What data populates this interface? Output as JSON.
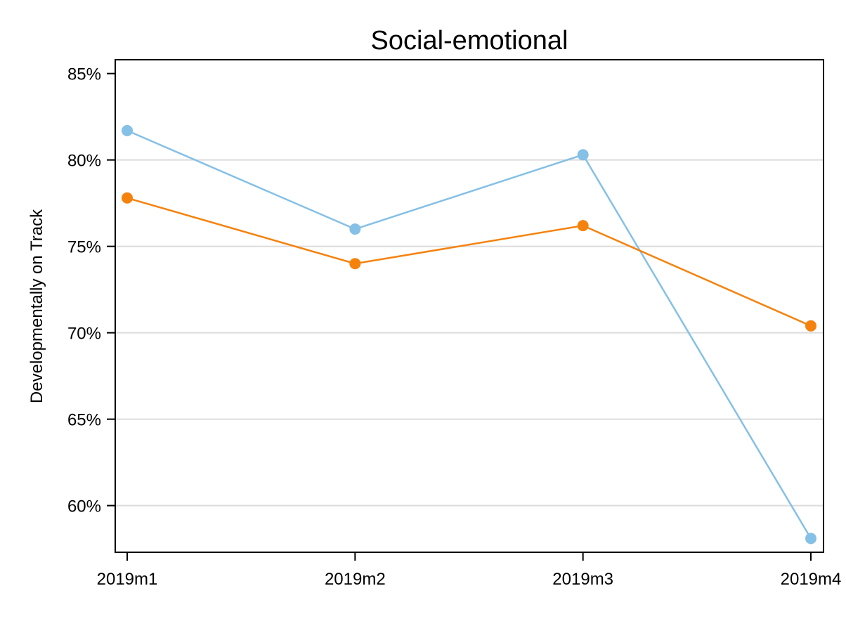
{
  "chart_data": {
    "type": "line",
    "title": "Social-emotional",
    "xlabel": "",
    "ylabel": "Developmentally on Track",
    "categories": [
      "2019m1",
      "2019m2",
      "2019m3",
      "2019m4"
    ],
    "y_ticks": [
      60,
      65,
      70,
      75,
      80,
      85
    ],
    "y_tick_labels": [
      "60%",
      "65%",
      "70%",
      "75%",
      "80%",
      "85%"
    ],
    "ylim": [
      57.3,
      85.8
    ],
    "grid": "horizontal",
    "legend": "none",
    "series": [
      {
        "color": "#85c0e6",
        "values": [
          81.7,
          76.0,
          80.3,
          58.1
        ]
      },
      {
        "color": "#f5820d",
        "values": [
          77.8,
          74.0,
          76.2,
          70.4
        ]
      }
    ]
  }
}
